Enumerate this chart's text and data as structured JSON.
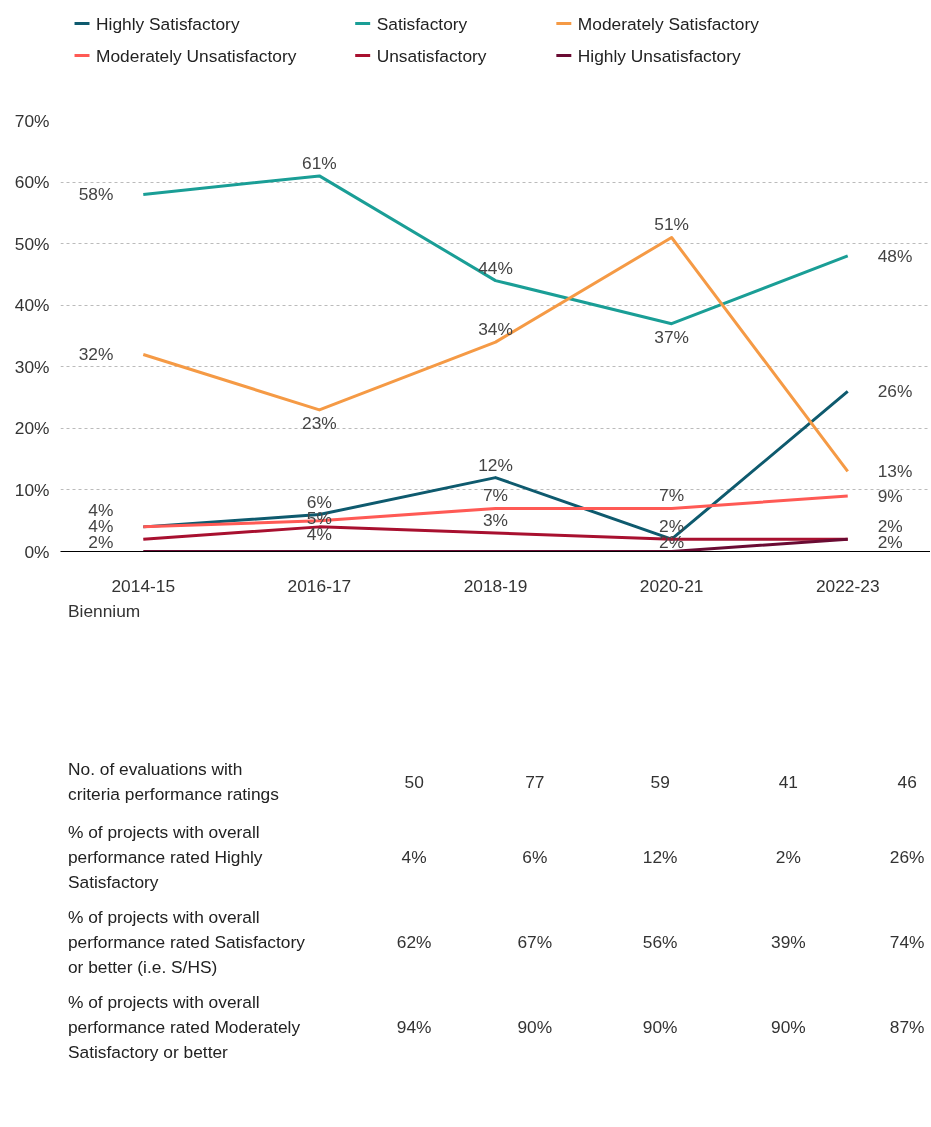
{
  "chart_data": {
    "type": "line",
    "xlabel": "Biennium",
    "categories": [
      "2014-15",
      "2016-17",
      "2018-19",
      "2020-21",
      "2022-23"
    ],
    "series": [
      {
        "name": "Highly Satisfactory",
        "color": "#0e5a6e",
        "values": [
          4,
          6,
          12,
          2,
          26
        ],
        "value_labels": [
          "4%",
          "6%",
          "12%",
          "2%",
          "26%"
        ]
      },
      {
        "name": "Satisfactory",
        "color": "#1a9e96",
        "values": [
          58,
          61,
          44,
          37,
          48
        ],
        "value_labels": [
          "58%",
          "61%",
          "44%",
          "37%",
          "48%"
        ]
      },
      {
        "name": "Moderately Satisfactory",
        "color": "#f59a45",
        "values": [
          32,
          23,
          34,
          51,
          13
        ],
        "value_labels": [
          "32%",
          "23%",
          "34%",
          "51%",
          "13%"
        ]
      },
      {
        "name": "Moderately Unsatisfactory",
        "color": "#ff5a55",
        "values": [
          4,
          5,
          7,
          7,
          9
        ],
        "value_labels": [
          "4%",
          "5%",
          "7%",
          "7%",
          "9%"
        ]
      },
      {
        "name": "Unsatisfactory",
        "color": "#a8102f",
        "values": [
          2,
          4,
          3,
          2,
          2
        ],
        "value_labels": [
          "2%",
          "4%",
          "3%",
          "2%",
          "2%"
        ]
      },
      {
        "name": "Highly Unsatisfactory",
        "color": "#6a0b33",
        "values": [
          0,
          0,
          0,
          0,
          2
        ],
        "value_labels": [
          null,
          null,
          null,
          null,
          "2%"
        ]
      }
    ],
    "ylim": [
      0,
      70
    ],
    "yticks": [
      {
        "value": 0,
        "label": "0%"
      },
      {
        "value": 10,
        "label": "10%"
      },
      {
        "value": 20,
        "label": "20%"
      },
      {
        "value": 30,
        "label": "30%"
      },
      {
        "value": 40,
        "label": "40%"
      },
      {
        "value": 50,
        "label": "50%"
      },
      {
        "value": 60,
        "label": "60%"
      },
      {
        "value": 70,
        "label": "70%"
      }
    ],
    "grid": "y",
    "legend": "top",
    "marker": "none",
    "line_style": "solid",
    "annotations": [
      "No. of evaluations with criteria performance ratings",
      "50",
      "77",
      "59",
      "41",
      "46",
      "% of projects with overall performance rated Highly Satisfactory",
      "4%",
      "6%",
      "12%",
      "2%",
      "26%",
      "% of projects with overall performance rated Satisfactory or better (i.e. S/HS)",
      "62%",
      "67%",
      "56%",
      "39%",
      "74%",
      "% of projects with overall performance rated Moderately Satisfactory or better",
      "94%",
      "90%",
      "90%",
      "90%",
      "87%"
    ]
  }
}
